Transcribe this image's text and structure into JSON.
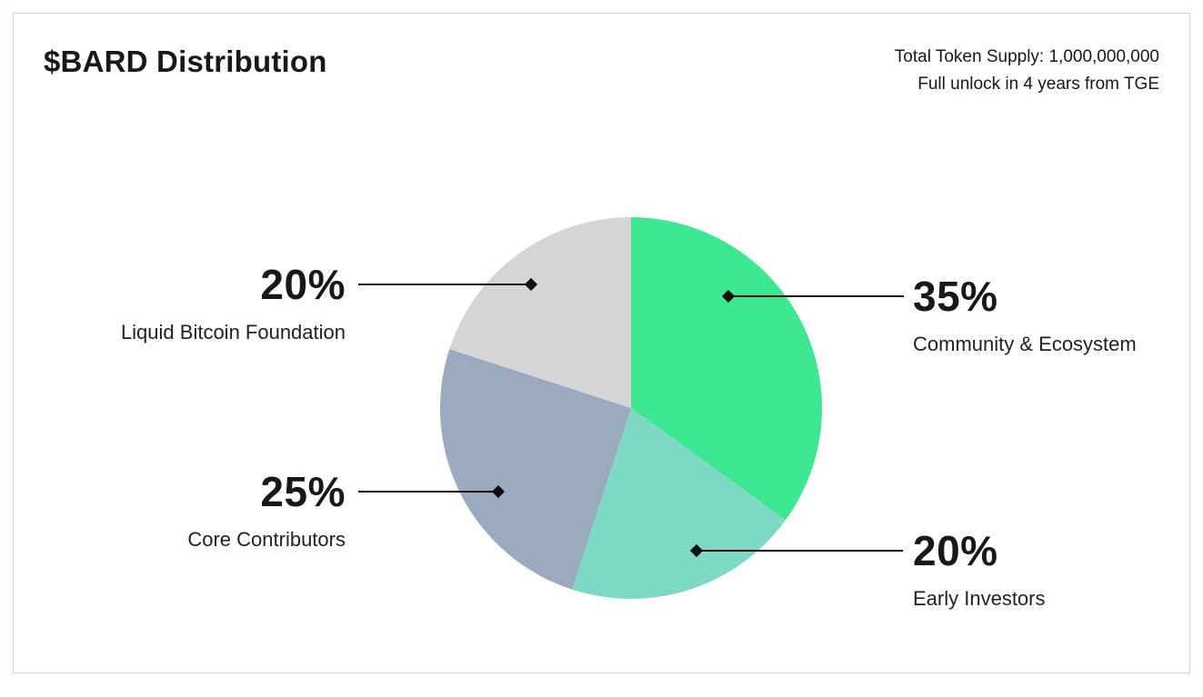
{
  "header": {
    "title": "$BARD Distribution",
    "supply_line": "Total Token Supply: 1,000,000,000",
    "unlock_line": "Full unlock in 4 years from TGE"
  },
  "chart_data": {
    "type": "pie",
    "title": "$BARD Distribution",
    "total_token_supply": "1,000,000,000",
    "unlock_note": "Full unlock in 4 years from TGE",
    "start_angle_deg": -90,
    "direction": "clockwise",
    "slices": [
      {
        "label": "Community & Ecosystem",
        "value": 35,
        "pct_label": "35%",
        "color": "#3ee893"
      },
      {
        "label": "Early Investors",
        "value": 20,
        "pct_label": "20%",
        "color": "#7dd8c4"
      },
      {
        "label": "Core Contributors",
        "value": 25,
        "pct_label": "25%",
        "color": "#9aaabf"
      },
      {
        "label": "Liquid Bitcoin Foundation",
        "value": 20,
        "pct_label": "20%",
        "color": "#d5d5d3"
      }
    ],
    "marker_color": "#111111",
    "leader_line_color": "#111111",
    "legend_position": "callout-labels"
  }
}
